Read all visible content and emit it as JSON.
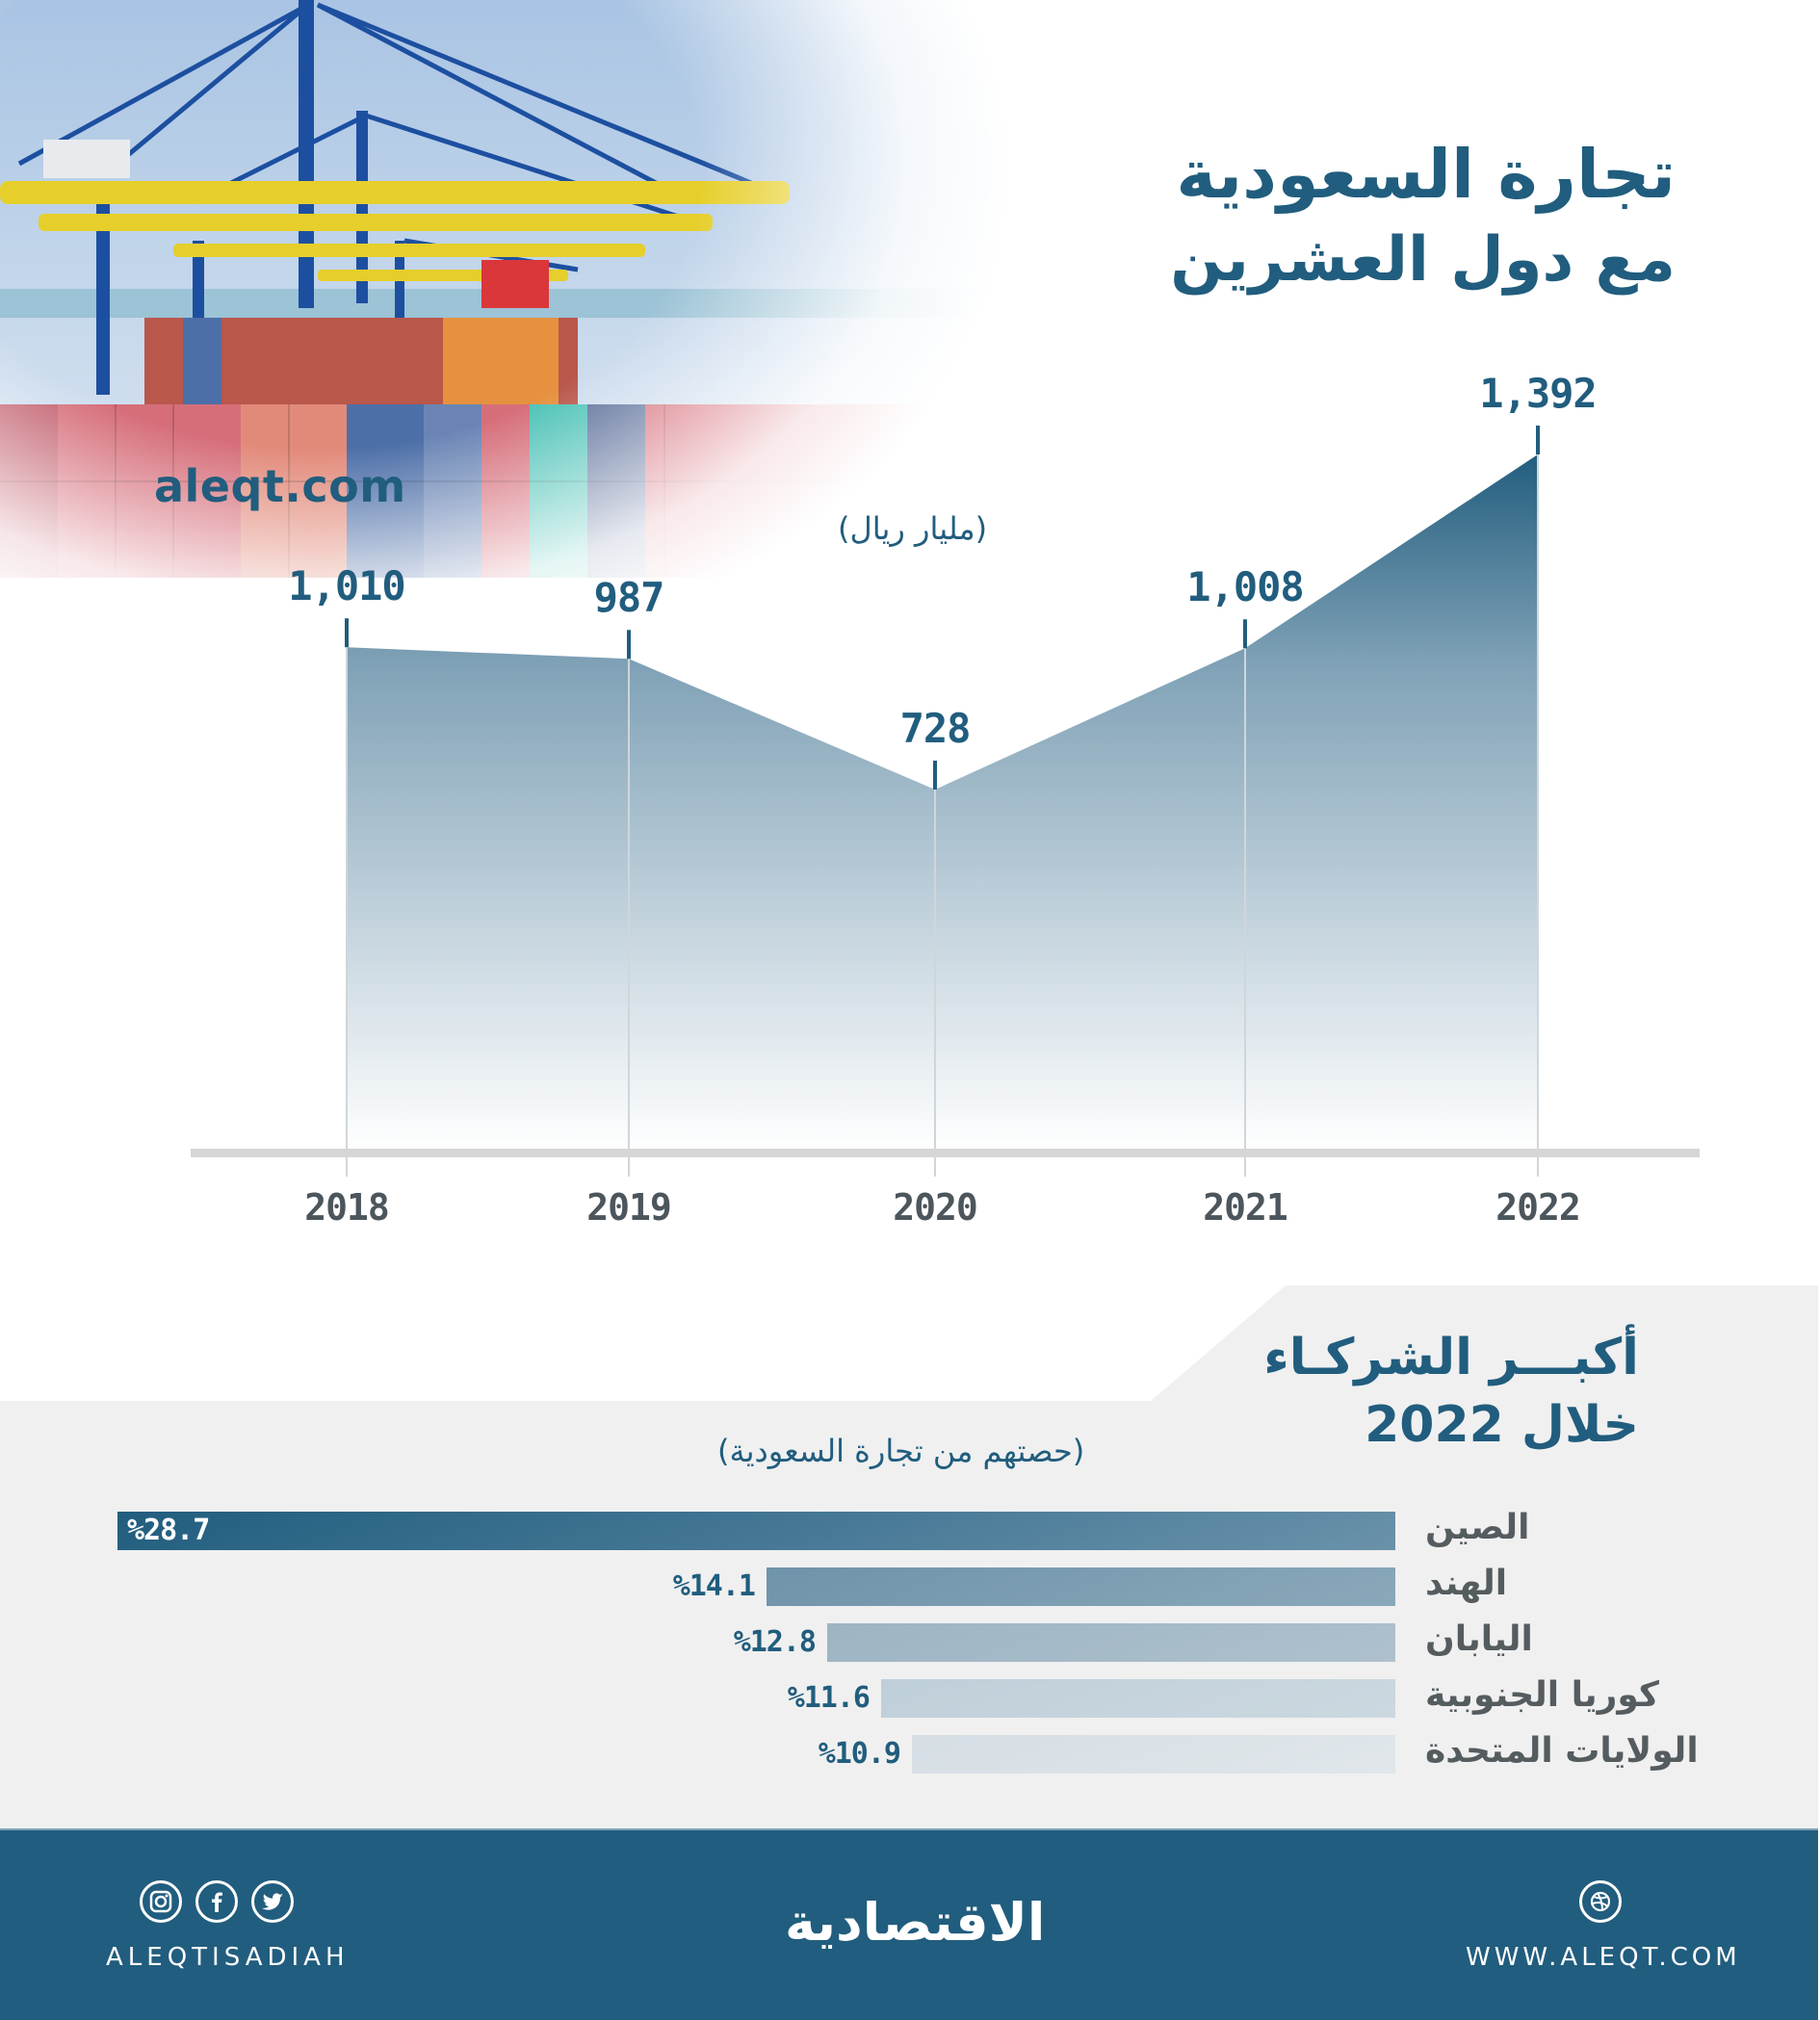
{
  "header": {
    "title_line1": "تجارة السعودية",
    "title_line2": "مع دول العشرين",
    "watermark": "aleqt.com",
    "unit": "(مليار ريال)"
  },
  "partners": {
    "title_line1": "أكبـــر الشركـاء",
    "title_line2": "خلال 2022",
    "subtitle": "(حصتهم من تجارة السعودية)",
    "items": [
      {
        "country": "الصين",
        "pct_label": "%28.7"
      },
      {
        "country": "الهند",
        "pct_label": "%14.1"
      },
      {
        "country": "اليابان",
        "pct_label": "%12.8"
      },
      {
        "country": "كوريا الجنوبية",
        "pct_label": "%11.6"
      },
      {
        "country": "الولايات المتحدة",
        "pct_label": "%10.9"
      }
    ]
  },
  "footer": {
    "social_icons": [
      "instagram-icon",
      "facebook-icon",
      "twitter-icon"
    ],
    "handle": "ALEQTISADIAH",
    "logo": "الاقتصادية",
    "web_icon": "dribbble-globe-icon",
    "website": "WWW.ALEQT.COM"
  },
  "colors": {
    "primary": "#215d7e",
    "axis": "#d6d6d6",
    "year_text": "#4c565c",
    "panel_gray": "#f0f0f0",
    "footer_bg": "#215d7e"
  },
  "chart_data": [
    {
      "type": "area",
      "title": "تجارة السعودية مع دول العشرين",
      "subtitle": "(مليار ريال)",
      "xlabel": "",
      "ylabel": "مليار ريال",
      "categories": [
        "2018",
        "2019",
        "2020",
        "2021",
        "2022"
      ],
      "values": [
        1010,
        987,
        728,
        1008,
        1392
      ],
      "value_labels": [
        "1,010",
        "987",
        "728",
        "1,008",
        "1,392"
      ],
      "grid": false,
      "legend": "none"
    },
    {
      "type": "bar",
      "orientation": "horizontal",
      "title": "أكبر الشركاء خلال 2022",
      "subtitle": "(حصتهم من تجارة السعودية)",
      "categories": [
        "الصين",
        "الهند",
        "اليابان",
        "كوريا الجنوبية",
        "الولايات المتحدة"
      ],
      "values": [
        28.7,
        14.1,
        12.8,
        11.6,
        10.9
      ],
      "unit": "%",
      "legend": "none"
    }
  ]
}
